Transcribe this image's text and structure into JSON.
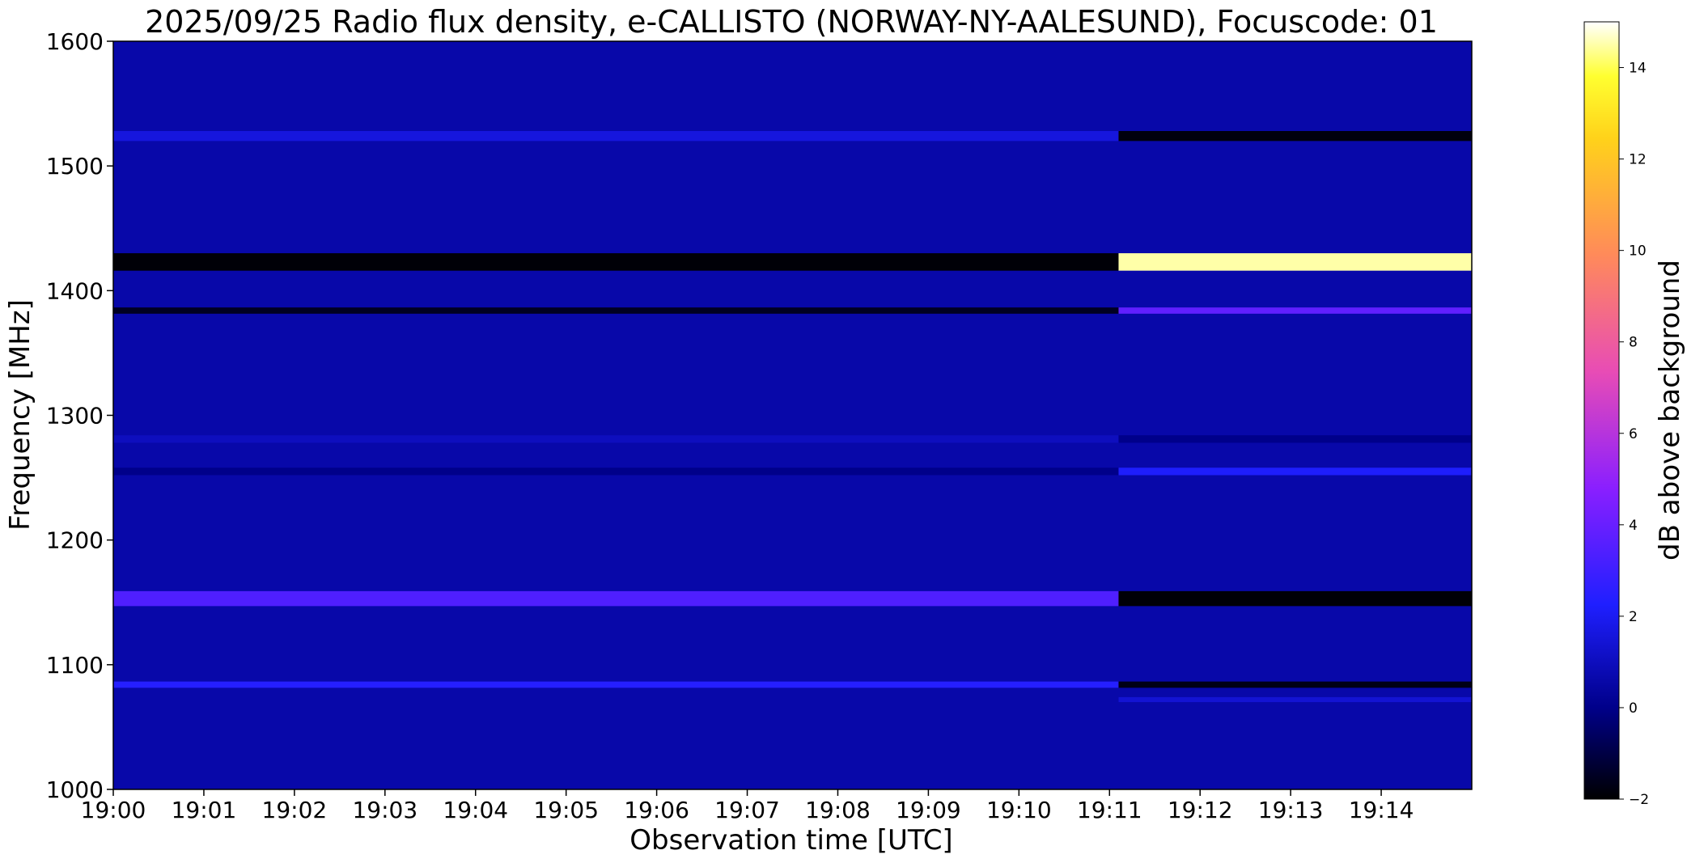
{
  "chart_data": {
    "type": "heatmap",
    "title": "2025/09/25  Radio flux density, e-CALLISTO (NORWAY-NY-AALESUND), Focuscode: 01",
    "xlabel": "Observation time [UTC]",
    "ylabel": "Frequency [MHz]",
    "colorbar_label": "dB above background",
    "colormap": "gnuplot2",
    "x_ticks": [
      "19:00",
      "19:01",
      "19:02",
      "19:03",
      "19:04",
      "19:05",
      "19:06",
      "19:07",
      "19:08",
      "19:09",
      "19:10",
      "19:11",
      "19:12",
      "19:13",
      "19:14"
    ],
    "x_range_minutes": [
      0,
      15
    ],
    "y_ticks": [
      1000,
      1100,
      1200,
      1300,
      1400,
      1500,
      1600
    ],
    "ylim": [
      1000,
      1600
    ],
    "colorbar_ticks": [
      -2,
      0,
      2,
      4,
      6,
      8,
      10,
      12,
      14
    ],
    "clim": [
      -2,
      15
    ],
    "background_db": 0.6,
    "transition_time_minutes": 11.1,
    "bands": [
      {
        "freq_mhz": 1524,
        "width_mhz": 8,
        "db_before": 1.6,
        "db_after": -1.8
      },
      {
        "freq_mhz": 1423,
        "width_mhz": 14,
        "db_before": -1.9,
        "db_after": 14.5
      },
      {
        "freq_mhz": 1384,
        "width_mhz": 5,
        "db_before": -1.5,
        "db_after": 3.8
      },
      {
        "freq_mhz": 1281,
        "width_mhz": 6,
        "db_before": 1.0,
        "db_after": 0.0
      },
      {
        "freq_mhz": 1255,
        "width_mhz": 6,
        "db_before": 0.0,
        "db_after": 2.2
      },
      {
        "freq_mhz": 1153,
        "width_mhz": 12,
        "db_before": 3.4,
        "db_after": -1.9
      },
      {
        "freq_mhz": 1084,
        "width_mhz": 5,
        "db_before": 2.4,
        "db_after": -1.7
      },
      {
        "freq_mhz": 1072,
        "width_mhz": 4,
        "db_before": 0.6,
        "db_after": 1.4
      }
    ]
  }
}
